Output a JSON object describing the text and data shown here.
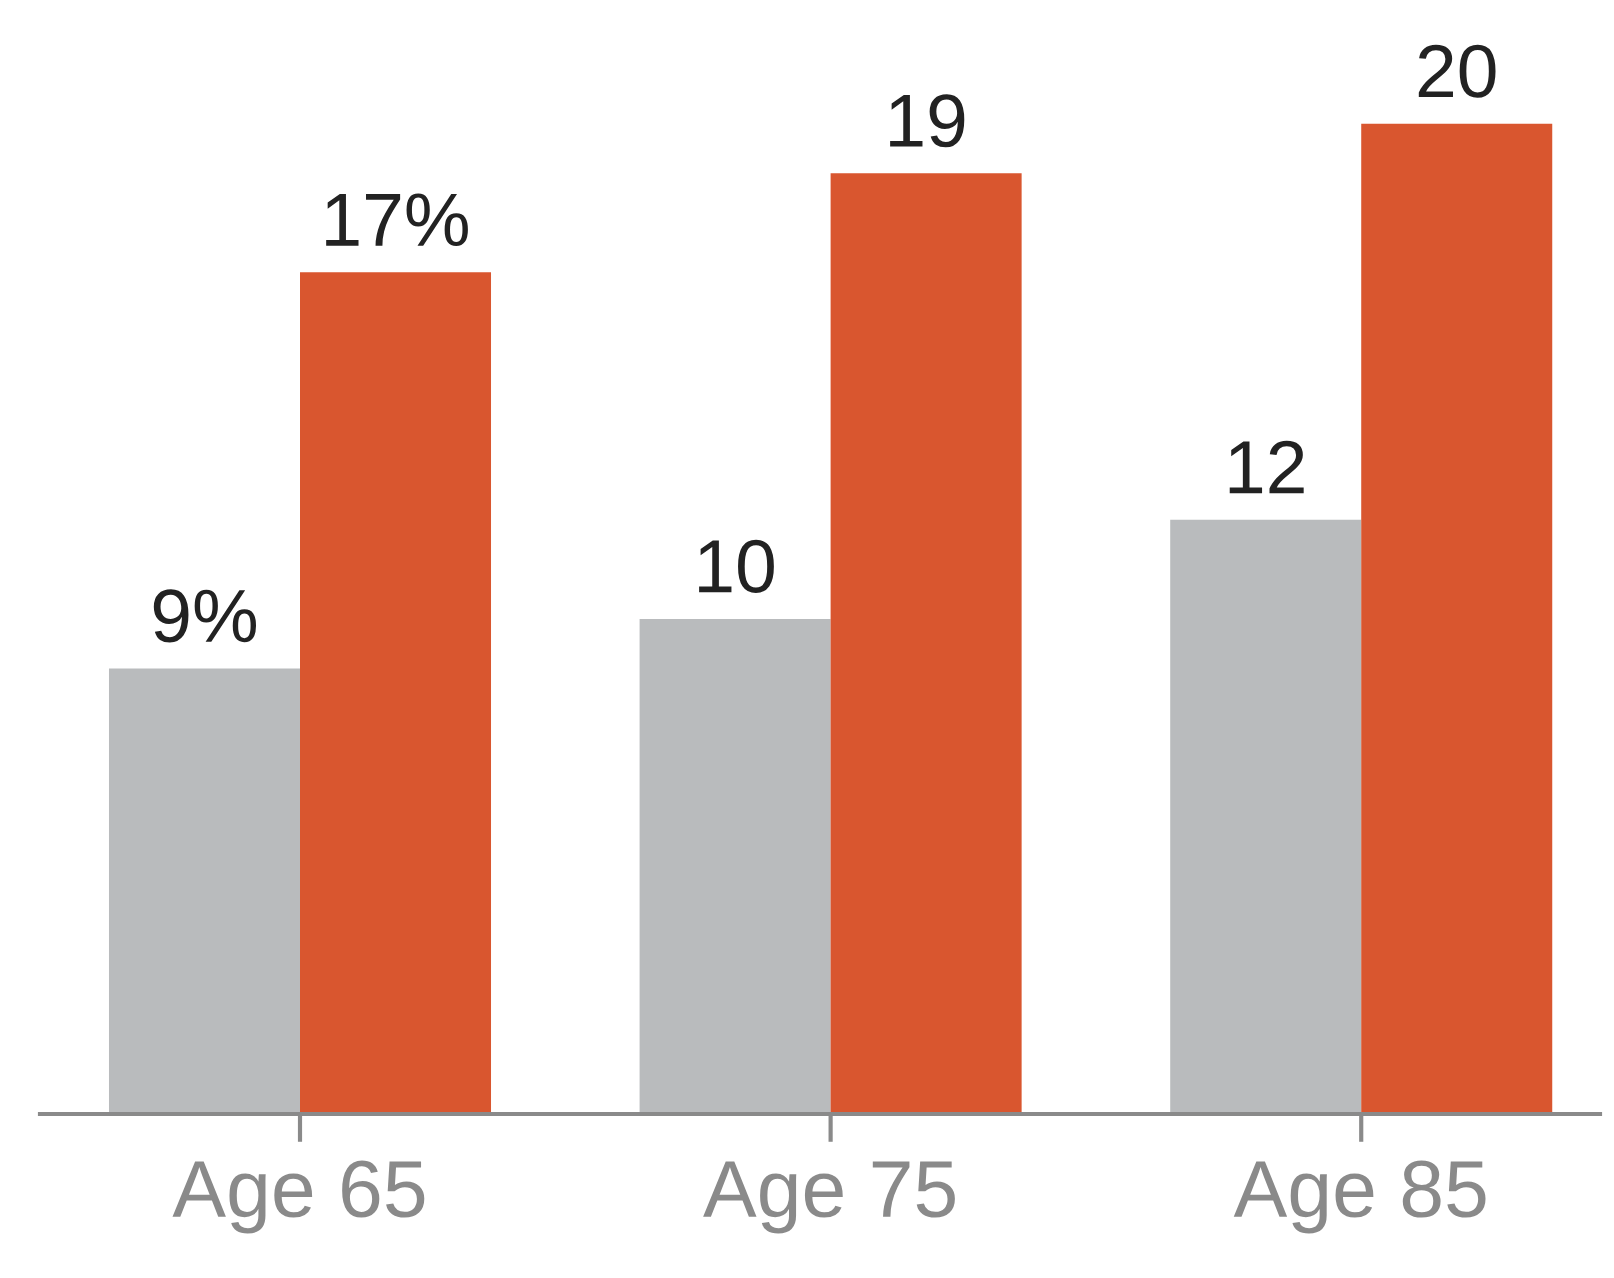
{
  "chart_data": {
    "type": "bar",
    "categories": [
      "Age 65",
      "Age 75",
      "Age 85"
    ],
    "series": [
      {
        "color": "#b9bbbd",
        "values": [
          9,
          10,
          12
        ],
        "value_labels": [
          "9%",
          "10",
          "12"
        ]
      },
      {
        "color": "#d9562f",
        "values": [
          17,
          19,
          20
        ],
        "value_labels": [
          "17%",
          "19",
          "20"
        ]
      }
    ],
    "grid": false,
    "legend": false
  }
}
